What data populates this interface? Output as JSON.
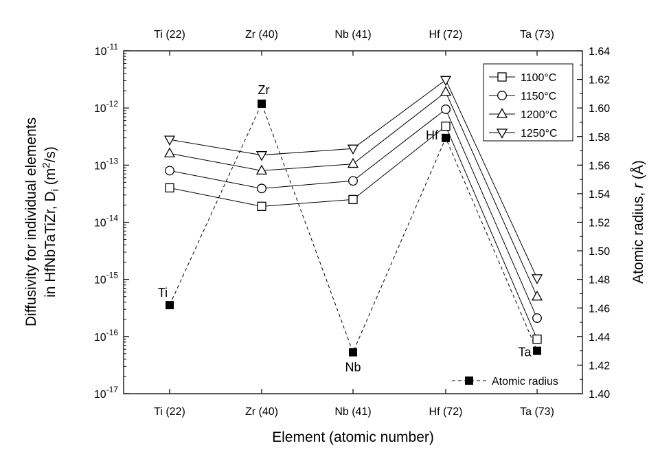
{
  "chart_data": {
    "type": "line",
    "x_axis": {
      "label": "Element (atomic number)",
      "categories": [
        "Ti (22)",
        "Zr (40)",
        "Nb (41)",
        "Hf (72)",
        "Ta (73)"
      ]
    },
    "left_axis": {
      "label_line1": "Diffusivity for individual elements",
      "label_line2_prefix": "in HfNbTaTiZr, D",
      "label_line2_sub": "i",
      "label_line2_unit_open": " (m",
      "label_line2_sup": "2",
      "label_line2_unit_close": "/s)",
      "scale": "log",
      "ylim": [
        1e-17,
        1e-11
      ],
      "tick_base": "10",
      "tick_exponents": [
        "-17",
        "-16",
        "-15",
        "-14",
        "-13",
        "-12",
        "-11"
      ]
    },
    "right_axis": {
      "label_prefix": "Atomic radius, ",
      "label_var": "r",
      "label_unit": " (Å)",
      "scale": "linear",
      "ylim": [
        1.4,
        1.64
      ],
      "ticks": [
        "1.40",
        "1.42",
        "1.44",
        "1.46",
        "1.48",
        "1.50",
        "1.52",
        "1.54",
        "1.56",
        "1.58",
        "1.60",
        "1.62",
        "1.64"
      ]
    },
    "series": [
      {
        "name": "1100°C",
        "marker": "square",
        "axis": "left",
        "values": [
          4e-14,
          1.9e-14,
          2.5e-14,
          4.8e-13,
          9e-17
        ]
      },
      {
        "name": "1150°C",
        "marker": "circle",
        "axis": "left",
        "values": [
          8e-14,
          3.9e-14,
          5.3e-14,
          9.5e-13,
          2.1e-16
        ]
      },
      {
        "name": "1200°C",
        "marker": "triangle-up",
        "axis": "left",
        "values": [
          1.6e-13,
          8e-14,
          1.05e-13,
          1.9e-12,
          5e-16
        ]
      },
      {
        "name": "1250°C",
        "marker": "triangle-down",
        "axis": "left",
        "values": [
          2.8e-13,
          1.5e-13,
          1.95e-13,
          3.1e-12,
          1.05e-15
        ]
      },
      {
        "name": "Atomic radius",
        "marker": "filled-square",
        "axis": "right",
        "line": "dashed",
        "values": [
          1.462,
          1.603,
          1.429,
          1.579,
          1.43
        ]
      }
    ],
    "point_labels": [
      "Ti",
      "Zr",
      "Nb",
      "Hf",
      "Ta"
    ],
    "legend": {
      "position": "top-right"
    },
    "legend2": {
      "position": "bottom-right"
    },
    "grid": false
  }
}
